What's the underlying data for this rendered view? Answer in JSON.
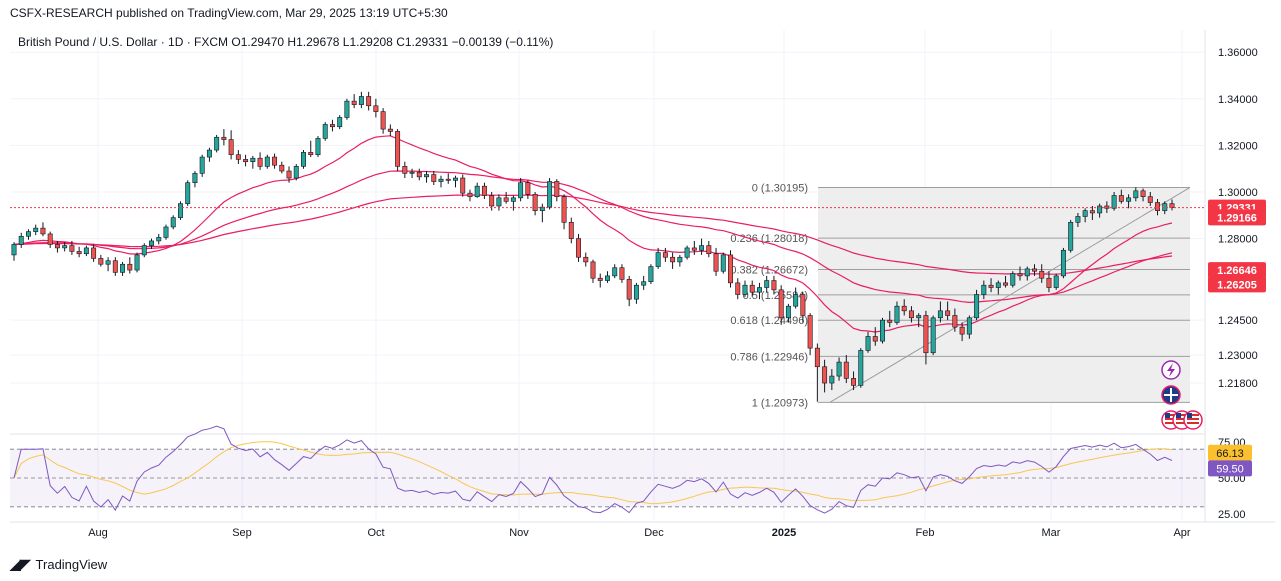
{
  "publisher_line": "CSFX-RESEARCH published on TradingView.com, Mar 29, 2025 13:19 UTC+5:30",
  "footer_brand": "TradingView",
  "colors": {
    "up": "#26a69a",
    "down": "#ef5350",
    "ma": "#e91e63",
    "rsi": "#7e57c2",
    "rsi_ma": "#f9c74f",
    "fib_line": "#9e9e9e",
    "current_price": "#f23645"
  },
  "chart_data": {
    "type": "candlestick",
    "title": "British Pound / U.S. Dollar · 1D · FXCM",
    "ohlc_header": {
      "open": "O1.29470",
      "high": "H1.29678",
      "low": "L1.29208",
      "close": "C1.29331",
      "change": "−0.00139 (−0.11%)"
    },
    "y_ticks": [
      "1.36000",
      "1.34000",
      "1.32000",
      "1.30000",
      "1.28000",
      "1.24500",
      "1.23000",
      "1.21800"
    ],
    "y_tick_values": [
      1.36,
      1.34,
      1.32,
      1.3,
      1.28,
      1.245,
      1.23,
      1.218
    ],
    "x_ticks": [
      "Aug",
      "Sep",
      "Oct",
      "Nov",
      "Dec",
      "2025",
      "Feb",
      "Mar",
      "Apr"
    ],
    "price_badges": [
      {
        "text": "1.29331",
        "value": 1.29331,
        "color": "#f23645"
      },
      {
        "text": "1.29166",
        "value": 1.29166,
        "color": "#f23645"
      },
      {
        "text": "1.26646",
        "value": 1.26646,
        "color": "#f23645"
      },
      {
        "text": "1.26205",
        "value": 1.26205,
        "color": "#f23645"
      }
    ],
    "fibonacci": [
      {
        "label": "0 (1.30195)",
        "value": 1.30195
      },
      {
        "label": "0.236 (1.28018)",
        "value": 1.28018
      },
      {
        "label": "0.382 (1.26672)",
        "value": 1.26672
      },
      {
        "label": "0.5 (1.25584)",
        "value": 1.25584
      },
      {
        "label": "0.618 (1.24496)",
        "value": 1.24496
      },
      {
        "label": "0.786 (1.22946)",
        "value": 1.22946
      },
      {
        "label": "1 (1.20973)",
        "value": 1.20973
      }
    ],
    "rsi": {
      "y_ticks": [
        "75.00",
        "50.00",
        "25.00"
      ],
      "badges": [
        {
          "text": "66.13",
          "color": "#fbc02d"
        },
        {
          "text": "59.50",
          "color": "#7e57c2"
        }
      ]
    },
    "candles": [
      [
        1.273,
        1.2785,
        1.2705,
        1.2775
      ],
      [
        1.2775,
        1.2825,
        1.276,
        1.281
      ],
      [
        1.281,
        1.284,
        1.2795,
        1.283
      ],
      [
        1.283,
        1.286,
        1.2815,
        1.2845
      ],
      [
        1.2845,
        1.287,
        1.281,
        1.282
      ],
      [
        1.282,
        1.283,
        1.276,
        1.2775
      ],
      [
        1.2775,
        1.279,
        1.274,
        1.276
      ],
      [
        1.276,
        1.2785,
        1.2745,
        1.277
      ],
      [
        1.277,
        1.279,
        1.273,
        1.2745
      ],
      [
        1.2745,
        1.2765,
        1.272,
        1.2735
      ],
      [
        1.2735,
        1.277,
        1.2725,
        1.276
      ],
      [
        1.276,
        1.2775,
        1.27,
        1.2715
      ],
      [
        1.2715,
        1.273,
        1.268,
        1.269
      ],
      [
        1.269,
        1.272,
        1.266,
        1.2705
      ],
      [
        1.2705,
        1.272,
        1.264,
        1.2655
      ],
      [
        1.2655,
        1.27,
        1.264,
        1.269
      ],
      [
        1.269,
        1.272,
        1.265,
        1.2665
      ],
      [
        1.2665,
        1.274,
        1.2655,
        1.273
      ],
      [
        1.273,
        1.278,
        1.272,
        1.277
      ],
      [
        1.277,
        1.28,
        1.2755,
        1.279
      ],
      [
        1.279,
        1.282,
        1.2775,
        1.2805
      ],
      [
        1.2805,
        1.286,
        1.2795,
        1.285
      ],
      [
        1.285,
        1.29,
        1.284,
        1.289
      ],
      [
        1.289,
        1.296,
        1.288,
        1.295
      ],
      [
        1.295,
        1.305,
        1.294,
        1.304
      ],
      [
        1.304,
        1.309,
        1.302,
        1.308
      ],
      [
        1.308,
        1.316,
        1.3065,
        1.315
      ],
      [
        1.315,
        1.319,
        1.313,
        1.318
      ],
      [
        1.318,
        1.3245,
        1.317,
        1.3235
      ],
      [
        1.3235,
        1.327,
        1.32,
        1.3225
      ],
      [
        1.3225,
        1.3265,
        1.314,
        1.316
      ],
      [
        1.316,
        1.318,
        1.312,
        1.314
      ],
      [
        1.314,
        1.316,
        1.311,
        1.313
      ],
      [
        1.313,
        1.3155,
        1.31,
        1.3145
      ],
      [
        1.3145,
        1.317,
        1.3095,
        1.311
      ],
      [
        1.311,
        1.316,
        1.31,
        1.315
      ],
      [
        1.315,
        1.3165,
        1.31,
        1.3115
      ],
      [
        1.3115,
        1.313,
        1.308,
        1.309
      ],
      [
        1.309,
        1.311,
        1.304,
        1.306
      ],
      [
        1.306,
        1.312,
        1.305,
        1.311
      ],
      [
        1.311,
        1.318,
        1.31,
        1.317
      ],
      [
        1.317,
        1.322,
        1.315,
        1.316
      ],
      [
        1.316,
        1.324,
        1.315,
        1.323
      ],
      [
        1.323,
        1.33,
        1.322,
        1.329
      ],
      [
        1.329,
        1.331,
        1.326,
        1.328
      ],
      [
        1.328,
        1.333,
        1.327,
        1.332
      ],
      [
        1.332,
        1.34,
        1.331,
        1.339
      ],
      [
        1.339,
        1.342,
        1.336,
        1.3375
      ],
      [
        1.3375,
        1.343,
        1.336,
        1.341
      ],
      [
        1.341,
        1.343,
        1.335,
        1.337
      ],
      [
        1.337,
        1.34,
        1.332,
        1.3345
      ],
      [
        1.3345,
        1.336,
        1.325,
        1.327
      ],
      [
        1.327,
        1.329,
        1.324,
        1.326
      ],
      [
        1.326,
        1.327,
        1.309,
        1.311
      ],
      [
        1.311,
        1.313,
        1.306,
        1.308
      ],
      [
        1.308,
        1.31,
        1.306,
        1.3085
      ],
      [
        1.3085,
        1.31,
        1.305,
        1.3065
      ],
      [
        1.3065,
        1.309,
        1.304,
        1.3075
      ],
      [
        1.3075,
        1.309,
        1.303,
        1.3045
      ],
      [
        1.3045,
        1.307,
        1.302,
        1.3055
      ],
      [
        1.3055,
        1.308,
        1.3035,
        1.305
      ],
      [
        1.305,
        1.307,
        1.302,
        1.306
      ],
      [
        1.306,
        1.3075,
        1.298,
        1.2995
      ],
      [
        1.2995,
        1.301,
        1.296,
        1.298
      ],
      [
        1.298,
        1.304,
        1.2975,
        1.3025
      ],
      [
        1.3025,
        1.304,
        1.297,
        1.2985
      ],
      [
        1.2985,
        1.3,
        1.292,
        1.294
      ],
      [
        1.294,
        1.299,
        1.292,
        1.2975
      ],
      [
        1.2975,
        1.3,
        1.295,
        1.296
      ],
      [
        1.296,
        1.2985,
        1.292,
        1.2975
      ],
      [
        1.2975,
        1.306,
        1.296,
        1.304
      ],
      [
        1.304,
        1.305,
        1.297,
        1.299
      ],
      [
        1.299,
        1.3,
        1.29,
        1.292
      ],
      [
        1.292,
        1.295,
        1.287,
        1.2935
      ],
      [
        1.2935,
        1.306,
        1.2925,
        1.3045
      ],
      [
        1.3045,
        1.3055,
        1.296,
        1.298
      ],
      [
        1.298,
        1.299,
        1.284,
        1.287
      ],
      [
        1.287,
        1.289,
        1.278,
        1.28
      ],
      [
        1.28,
        1.282,
        1.27,
        1.272
      ],
      [
        1.272,
        1.274,
        1.268,
        1.27
      ],
      [
        1.27,
        1.271,
        1.261,
        1.263
      ],
      [
        1.263,
        1.265,
        1.259,
        1.262
      ],
      [
        1.262,
        1.266,
        1.261,
        1.264
      ],
      [
        1.264,
        1.269,
        1.263,
        1.2675
      ],
      [
        1.2675,
        1.269,
        1.261,
        1.2625
      ],
      [
        1.2625,
        1.264,
        1.251,
        1.254
      ],
      [
        1.254,
        1.261,
        1.252,
        1.26
      ],
      [
        1.26,
        1.264,
        1.258,
        1.2615
      ],
      [
        1.2615,
        1.269,
        1.2605,
        1.268
      ],
      [
        1.268,
        1.276,
        1.267,
        1.274
      ],
      [
        1.274,
        1.276,
        1.27,
        1.272
      ],
      [
        1.272,
        1.274,
        1.267,
        1.27
      ],
      [
        1.27,
        1.273,
        1.268,
        1.272
      ],
      [
        1.272,
        1.277,
        1.271,
        1.276
      ],
      [
        1.276,
        1.279,
        1.273,
        1.275
      ],
      [
        1.275,
        1.28,
        1.273,
        1.277
      ],
      [
        1.277,
        1.279,
        1.272,
        1.2735
      ],
      [
        1.2735,
        1.276,
        1.264,
        1.266
      ],
      [
        1.266,
        1.274,
        1.265,
        1.273
      ],
      [
        1.273,
        1.275,
        1.259,
        1.261
      ],
      [
        1.261,
        1.263,
        1.254,
        1.256
      ],
      [
        1.256,
        1.262,
        1.255,
        1.26
      ],
      [
        1.26,
        1.262,
        1.255,
        1.257
      ],
      [
        1.257,
        1.261,
        1.254,
        1.259
      ],
      [
        1.259,
        1.264,
        1.257,
        1.262
      ],
      [
        1.262,
        1.264,
        1.256,
        1.258
      ],
      [
        1.258,
        1.26,
        1.243,
        1.246
      ],
      [
        1.246,
        1.252,
        1.244,
        1.251
      ],
      [
        1.251,
        1.259,
        1.25,
        1.256
      ],
      [
        1.256,
        1.257,
        1.244,
        1.247
      ],
      [
        1.247,
        1.248,
        1.23,
        1.233
      ],
      [
        1.233,
        1.235,
        1.21,
        1.225
      ],
      [
        1.225,
        1.228,
        1.214,
        1.218
      ],
      [
        1.218,
        1.224,
        1.215,
        1.221
      ],
      [
        1.221,
        1.229,
        1.219,
        1.227
      ],
      [
        1.227,
        1.23,
        1.218,
        1.22
      ],
      [
        1.22,
        1.223,
        1.215,
        1.217
      ],
      [
        1.217,
        1.233,
        1.216,
        1.232
      ],
      [
        1.232,
        1.24,
        1.231,
        1.238
      ],
      [
        1.238,
        1.242,
        1.234,
        1.236
      ],
      [
        1.236,
        1.246,
        1.235,
        1.245
      ],
      [
        1.245,
        1.249,
        1.242,
        1.244
      ],
      [
        1.244,
        1.253,
        1.243,
        1.251
      ],
      [
        1.251,
        1.254,
        1.247,
        1.249
      ],
      [
        1.249,
        1.251,
        1.244,
        1.246
      ],
      [
        1.246,
        1.248,
        1.242,
        1.247
      ],
      [
        1.247,
        1.249,
        1.226,
        1.231
      ],
      [
        1.231,
        1.247,
        1.23,
        1.246
      ],
      [
        1.246,
        1.253,
        1.244,
        1.249
      ],
      [
        1.249,
        1.253,
        1.245,
        1.247
      ],
      [
        1.247,
        1.25,
        1.24,
        1.242
      ],
      [
        1.242,
        1.244,
        1.236,
        1.239
      ],
      [
        1.239,
        1.247,
        1.237,
        1.246
      ],
      [
        1.246,
        1.258,
        1.245,
        1.256
      ],
      [
        1.256,
        1.262,
        1.254,
        1.26
      ],
      [
        1.26,
        1.263,
        1.257,
        1.259
      ],
      [
        1.259,
        1.262,
        1.256,
        1.261
      ],
      [
        1.261,
        1.264,
        1.259,
        1.26
      ],
      [
        1.26,
        1.266,
        1.259,
        1.265
      ],
      [
        1.265,
        1.268,
        1.262,
        1.264
      ],
      [
        1.264,
        1.268,
        1.262,
        1.267
      ],
      [
        1.267,
        1.269,
        1.264,
        1.266
      ],
      [
        1.266,
        1.269,
        1.261,
        1.263
      ],
      [
        1.263,
        1.266,
        1.257,
        1.259
      ],
      [
        1.259,
        1.265,
        1.258,
        1.264
      ],
      [
        1.264,
        1.276,
        1.263,
        1.275
      ],
      [
        1.275,
        1.288,
        1.274,
        1.287
      ],
      [
        1.287,
        1.291,
        1.285,
        1.2895
      ],
      [
        1.2895,
        1.293,
        1.287,
        1.292
      ],
      [
        1.292,
        1.294,
        1.288,
        1.291
      ],
      [
        1.291,
        1.295,
        1.289,
        1.294
      ],
      [
        1.294,
        1.296,
        1.291,
        1.293
      ],
      [
        1.293,
        1.3,
        1.292,
        1.2985
      ],
      [
        1.2985,
        1.301,
        1.295,
        1.296
      ],
      [
        1.296,
        1.299,
        1.293,
        1.2975
      ],
      [
        1.2975,
        1.302,
        1.296,
        1.3005
      ],
      [
        1.3005,
        1.3015,
        1.296,
        1.298
      ],
      [
        1.298,
        1.3,
        1.294,
        1.2955
      ],
      [
        1.2955,
        1.297,
        1.29,
        1.292
      ],
      [
        1.292,
        1.296,
        1.2905,
        1.295
      ],
      [
        1.295,
        1.2968,
        1.2921,
        1.2933
      ]
    ]
  }
}
